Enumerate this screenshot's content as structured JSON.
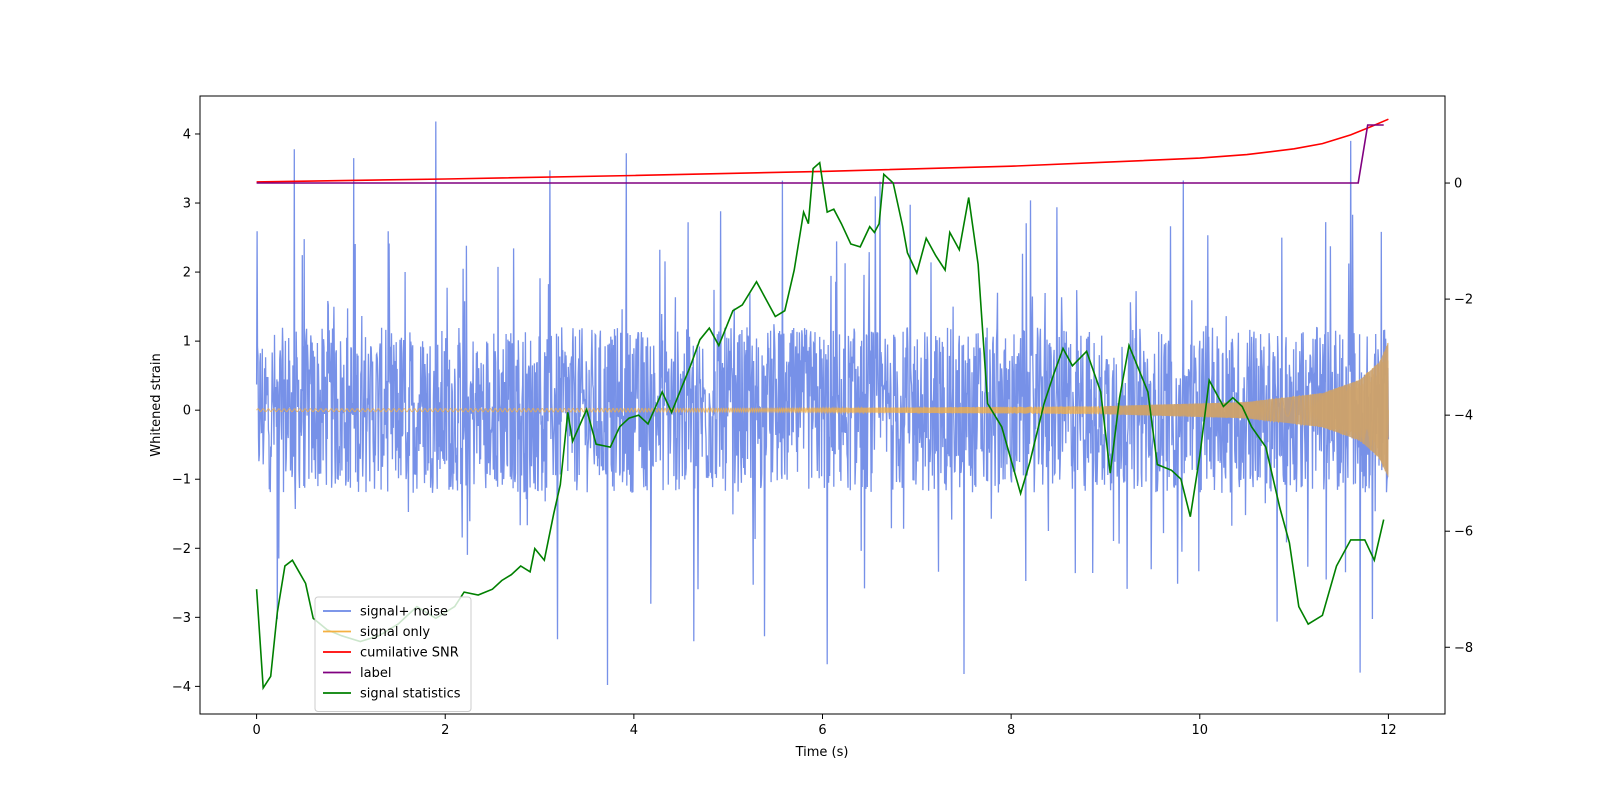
{
  "chart_data": {
    "type": "line",
    "xlabel": "Time (s)",
    "ylabel_left": "Whitened strain",
    "xlim": [
      -0.6,
      12.6
    ],
    "ylim_left": [
      -4.4,
      4.55
    ],
    "ylim_right": [
      -9.15,
      1.5
    ],
    "xticks": [
      0,
      2,
      4,
      6,
      8,
      10,
      12
    ],
    "yticks_left": [
      -4,
      -3,
      -2,
      -1,
      0,
      1,
      2,
      3,
      4
    ],
    "yticks_right": [
      -8,
      -6,
      -4,
      -2,
      0
    ],
    "grid": false,
    "legend_position": "lower-left",
    "series": [
      {
        "name": "signal+ noise",
        "axis": "left",
        "color": "#6b88e6",
        "style": "noise",
        "envelope_inner_y": 1.2,
        "envelope_peak_y": 4.2,
        "peaks": [
          {
            "x": 0.4,
            "y": 3.78
          },
          {
            "x": 1.03,
            "y": 3.65
          },
          {
            "x": 1.9,
            "y": 4.18
          },
          {
            "x": 3.92,
            "y": 3.72
          },
          {
            "x": 11.6,
            "y": 3.9
          },
          {
            "x": 3.72,
            "y": -3.98
          },
          {
            "x": 6.05,
            "y": -3.68
          },
          {
            "x": 7.5,
            "y": -3.82
          },
          {
            "x": 11.7,
            "y": -3.8
          }
        ]
      },
      {
        "name": "signal only",
        "axis": "left",
        "color": "#f5b041",
        "style": "chirp",
        "x": [
          0,
          6,
          9,
          10.5,
          11.3,
          11.7,
          11.9,
          12.0
        ],
        "amplitude": [
          0.02,
          0.03,
          0.06,
          0.12,
          0.25,
          0.45,
          0.7,
          1.0
        ]
      },
      {
        "name": "cumilative SNR",
        "axis": "right",
        "color": "#ff0000",
        "x": [
          0,
          2,
          4,
          6,
          8,
          9,
          10,
          10.5,
          11,
          11.3,
          11.6,
          11.8,
          12.0
        ],
        "y": [
          0.02,
          0.07,
          0.13,
          0.2,
          0.29,
          0.36,
          0.43,
          0.49,
          0.59,
          0.68,
          0.83,
          0.96,
          1.1
        ]
      },
      {
        "name": "label",
        "axis": "right",
        "color": "#800080",
        "x": [
          0,
          11.68,
          11.78,
          11.95
        ],
        "y": [
          0,
          0,
          1.0,
          1.0
        ]
      },
      {
        "name": "signal statistics",
        "axis": "right",
        "color": "#008000",
        "x": [
          0.0,
          0.07,
          0.15,
          0.22,
          0.3,
          0.38,
          0.45,
          0.52,
          0.6,
          0.75,
          0.9,
          1.1,
          1.3,
          1.5,
          1.7,
          1.9,
          2.1,
          2.2,
          2.35,
          2.5,
          2.6,
          2.7,
          2.8,
          2.9,
          2.95,
          3.05,
          3.15,
          3.22,
          3.3,
          3.35,
          3.5,
          3.6,
          3.75,
          3.85,
          3.95,
          4.05,
          4.15,
          4.3,
          4.4,
          4.5,
          4.6,
          4.7,
          4.8,
          4.9,
          5.05,
          5.15,
          5.3,
          5.4,
          5.5,
          5.6,
          5.7,
          5.8,
          5.85,
          5.9,
          5.97,
          6.05,
          6.12,
          6.2,
          6.3,
          6.4,
          6.5,
          6.55,
          6.6,
          6.65,
          6.75,
          6.85,
          6.9,
          7.0,
          7.1,
          7.2,
          7.3,
          7.35,
          7.45,
          7.55,
          7.65,
          7.75,
          7.9,
          8.1,
          8.2,
          8.35,
          8.45,
          8.55,
          8.65,
          8.8,
          8.95,
          9.05,
          9.15,
          9.25,
          9.35,
          9.45,
          9.55,
          9.7,
          9.8,
          9.9,
          10.0,
          10.1,
          10.25,
          10.35,
          10.45,
          10.55,
          10.7,
          10.85,
          10.95,
          11.05,
          11.15,
          11.3,
          11.45,
          11.6,
          11.75,
          11.85,
          11.95
        ],
        "y": [
          -7.0,
          -8.7,
          -8.5,
          -7.4,
          -6.6,
          -6.5,
          -6.7,
          -6.9,
          -7.5,
          -7.7,
          -7.8,
          -7.9,
          -7.8,
          -7.6,
          -7.3,
          -7.5,
          -7.3,
          -7.05,
          -7.1,
          -7.0,
          -6.85,
          -6.75,
          -6.6,
          -6.7,
          -6.3,
          -6.5,
          -5.7,
          -5.2,
          -3.95,
          -4.45,
          -3.9,
          -4.5,
          -4.55,
          -4.2,
          -4.05,
          -4.0,
          -4.15,
          -3.6,
          -3.95,
          -3.55,
          -3.15,
          -2.7,
          -2.5,
          -2.8,
          -2.2,
          -2.1,
          -1.7,
          -2.0,
          -2.3,
          -2.2,
          -1.5,
          -0.5,
          -0.7,
          0.25,
          0.35,
          -0.5,
          -0.45,
          -0.7,
          -1.05,
          -1.1,
          -0.75,
          -0.85,
          -0.7,
          0.15,
          0.0,
          -0.75,
          -1.2,
          -1.55,
          -0.95,
          -1.25,
          -1.5,
          -0.85,
          -1.15,
          -0.25,
          -1.4,
          -3.8,
          -4.2,
          -5.35,
          -4.8,
          -3.8,
          -3.3,
          -2.85,
          -3.15,
          -2.9,
          -3.6,
          -5.0,
          -3.7,
          -2.8,
          -3.2,
          -3.6,
          -4.85,
          -4.95,
          -5.1,
          -5.75,
          -4.7,
          -3.4,
          -3.85,
          -3.7,
          -3.85,
          -4.2,
          -4.55,
          -5.6,
          -6.2,
          -7.3,
          -7.6,
          -7.45,
          -6.6,
          -6.15,
          -6.15,
          -6.5,
          -5.8
        ]
      }
    ]
  },
  "legend": {
    "items": [
      {
        "label": "signal+ noise",
        "color": "#6b88e6"
      },
      {
        "label": "signal only",
        "color": "#f5b041"
      },
      {
        "label": "cumilative SNR",
        "color": "#ff0000"
      },
      {
        "label": "label",
        "color": "#800080"
      },
      {
        "label": "signal statistics",
        "color": "#008000"
      }
    ]
  }
}
